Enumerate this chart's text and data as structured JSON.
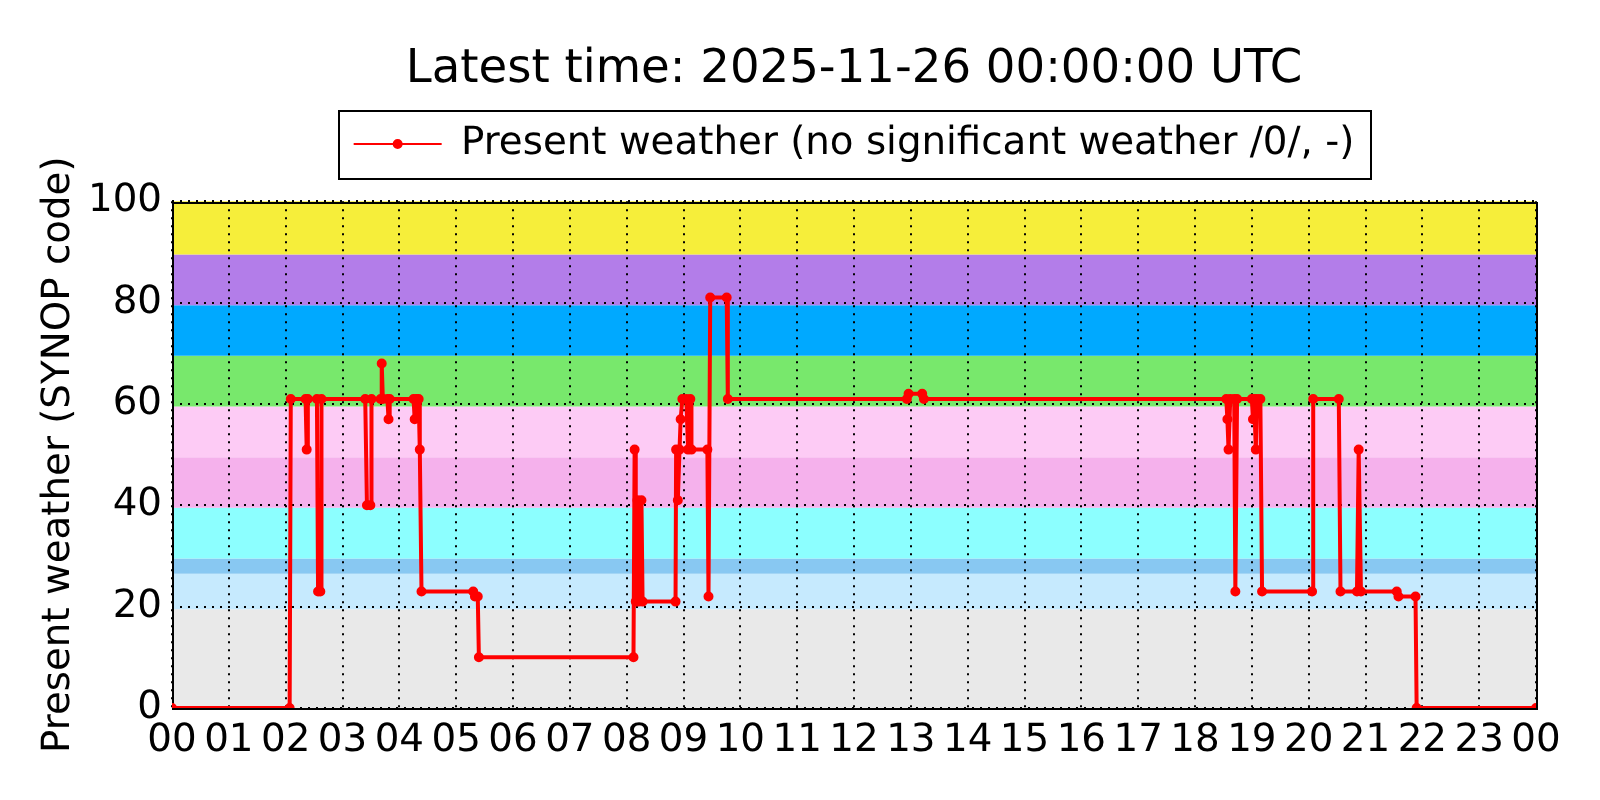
{
  "chart_data": {
    "type": "line",
    "title": "Latest time: 2025-11-26 00:00:00 UTC",
    "ylabel": "Present weather (SYNOP code)",
    "x": [
      0,
      2.07,
      2.09,
      2.35,
      2.37,
      2.39,
      2.55,
      2.57,
      2.61,
      2.63,
      3.4,
      3.43,
      3.49,
      3.51,
      3.67,
      3.69,
      3.71,
      3.79,
      3.81,
      3.83,
      4.25,
      4.27,
      4.3,
      4.34,
      4.36,
      4.39,
      5.3,
      5.33,
      5.38,
      5.4,
      8.12,
      8.14,
      8.16,
      8.19,
      8.21,
      8.26,
      8.28,
      8.86,
      8.87,
      8.9,
      8.93,
      8.95,
      8.98,
      9.05,
      9.08,
      9.12,
      9.14,
      9.42,
      9.44,
      9.47,
      9.76,
      9.78,
      12.93,
      12.96,
      13.2,
      13.23,
      18.55,
      18.57,
      18.59,
      18.62,
      18.69,
      18.71,
      18.74,
      19.0,
      19.02,
      19.04,
      19.07,
      19.09,
      19.15,
      19.18,
      20.06,
      20.08,
      20.53,
      20.56,
      20.85,
      20.88,
      20.92,
      21.55,
      21.58,
      21.88,
      21.9,
      24
    ],
    "series": [
      {
        "name": "Present weather (no significant weather /0/, -)",
        "color": "#ff0000",
        "values": [
          0,
          0,
          61,
          61,
          51,
          61,
          61,
          23,
          23,
          61,
          61,
          40,
          40,
          61,
          61,
          68,
          61,
          61,
          57,
          61,
          61,
          57,
          61,
          61,
          51,
          23,
          23,
          22,
          22,
          10,
          10,
          51,
          21,
          41,
          21,
          41,
          21,
          21,
          51,
          41,
          51,
          57,
          61,
          61,
          51,
          61,
          51,
          51,
          22,
          81,
          81,
          61,
          61,
          62,
          62,
          61,
          61,
          57,
          51,
          61,
          61,
          23,
          61,
          61,
          57,
          61,
          51,
          61,
          61,
          23,
          23,
          61,
          61,
          23,
          23,
          51,
          23,
          23,
          22,
          22,
          0,
          0
        ]
      }
    ],
    "xlim": [
      0,
      24
    ],
    "xticks": [
      {
        "value": 0,
        "label": "00"
      },
      {
        "value": 1,
        "label": "01"
      },
      {
        "value": 2,
        "label": "02"
      },
      {
        "value": 3,
        "label": "03"
      },
      {
        "value": 4,
        "label": "04"
      },
      {
        "value": 5,
        "label": "05"
      },
      {
        "value": 6,
        "label": "06"
      },
      {
        "value": 7,
        "label": "07"
      },
      {
        "value": 8,
        "label": "08"
      },
      {
        "value": 9,
        "label": "09"
      },
      {
        "value": 10,
        "label": "10"
      },
      {
        "value": 11,
        "label": "11"
      },
      {
        "value": 12,
        "label": "12"
      },
      {
        "value": 13,
        "label": "13"
      },
      {
        "value": 14,
        "label": "14"
      },
      {
        "value": 15,
        "label": "15"
      },
      {
        "value": 16,
        "label": "16"
      },
      {
        "value": 17,
        "label": "17"
      },
      {
        "value": 18,
        "label": "18"
      },
      {
        "value": 19,
        "label": "19"
      },
      {
        "value": 20,
        "label": "20"
      },
      {
        "value": 21,
        "label": "21"
      },
      {
        "value": 22,
        "label": "22"
      },
      {
        "value": 23,
        "label": "23"
      },
      {
        "value": 24,
        "label": "00"
      }
    ],
    "ylim": [
      0,
      100
    ],
    "yticks": [
      0,
      20,
      40,
      60,
      80,
      100
    ],
    "bands": [
      {
        "axis": "y",
        "from": 0,
        "to": 19.5,
        "color": "#e9e9e9"
      },
      {
        "axis": "y",
        "from": 19.5,
        "to": 26.5,
        "color": "#c6eafe"
      },
      {
        "axis": "y",
        "from": 26.5,
        "to": 29.5,
        "color": "#88c8f2"
      },
      {
        "axis": "y",
        "from": 29.5,
        "to": 39.5,
        "color": "#8cffff"
      },
      {
        "axis": "y",
        "from": 39.5,
        "to": 49.5,
        "color": "#f5b1ec"
      },
      {
        "axis": "y",
        "from": 49.5,
        "to": 59.5,
        "color": "#fdcbf5"
      },
      {
        "axis": "y",
        "from": 59.5,
        "to": 69.5,
        "color": "#78e86c"
      },
      {
        "axis": "y",
        "from": 69.5,
        "to": 79.5,
        "color": "#00a9ff"
      },
      {
        "axis": "y",
        "from": 79.5,
        "to": 89.5,
        "color": "#b37de9"
      },
      {
        "axis": "y",
        "from": 89.5,
        "to": 100,
        "color": "#f6ee3a"
      }
    ],
    "grid": true,
    "legend": "top",
    "marker": "circle",
    "line_style": "solid"
  }
}
